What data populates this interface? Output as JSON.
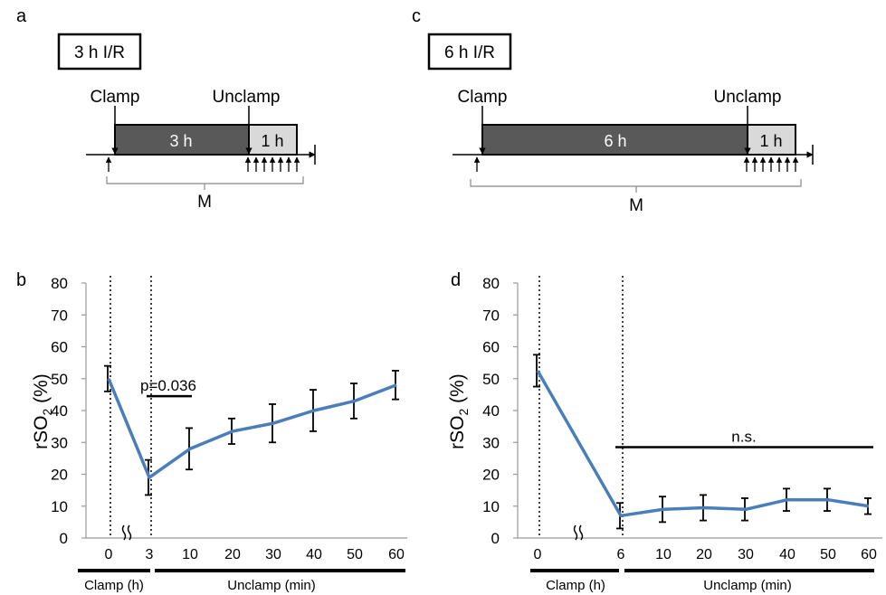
{
  "panels": {
    "a": {
      "letter": "a",
      "box_label": "3 h I/R",
      "clamp_label": "Clamp",
      "unclamp_label": "Unclamp",
      "dark_bar_label": "3 h",
      "light_bar_label": "1 h",
      "measure_label": "M",
      "measure_arrows_after_unclamp": 7
    },
    "c": {
      "letter": "c",
      "box_label": "6 h I/R",
      "clamp_label": "Clamp",
      "unclamp_label": "Unclamp",
      "dark_bar_label": "6 h",
      "light_bar_label": "1 h",
      "measure_label": "M",
      "measure_arrows_after_unclamp": 7
    }
  },
  "chart_data": [
    {
      "panel": "b",
      "type": "line",
      "letter": "b",
      "ylabel": "rSO2 (%)",
      "ylabel_main": "rSO",
      "ylabel_sub": "2",
      "ylabel_tail": " (%)",
      "ylim": [
        0,
        80
      ],
      "yticks": [
        0,
        10,
        20,
        30,
        40,
        50,
        60,
        70,
        80
      ],
      "x_tick_labels": [
        "0",
        "3",
        "10",
        "20",
        "30",
        "40",
        "50",
        "60"
      ],
      "clamp_segment_label": "Clamp (h)",
      "unclamp_segment_label": "Unclamp (min)",
      "series": [
        {
          "color": "#4a7ebb",
          "x": [
            "0",
            "3",
            "10",
            "20",
            "30",
            "40",
            "50",
            "60"
          ],
          "values": [
            50,
            19,
            28,
            33.5,
            36,
            40,
            43,
            48
          ],
          "error": [
            4,
            5.5,
            6.5,
            4,
            6,
            6.5,
            5.5,
            4.5
          ]
        }
      ],
      "annotation": {
        "text": "p=0.036",
        "y": 44.5
      },
      "vlines_at": [
        "0",
        "3"
      ]
    },
    {
      "panel": "d",
      "type": "line",
      "letter": "d",
      "ylabel": "rSO2 (%)",
      "ylabel_main": "rSO",
      "ylabel_sub": "2",
      "ylabel_tail": " (%)",
      "ylim": [
        0,
        80
      ],
      "yticks": [
        0,
        10,
        20,
        30,
        40,
        50,
        60,
        70,
        80
      ],
      "x_tick_labels": [
        "0",
        "6",
        "10",
        "20",
        "30",
        "40",
        "50",
        "60"
      ],
      "clamp_segment_label": "Clamp (h)",
      "unclamp_segment_label": "Unclamp (min)",
      "series": [
        {
          "color": "#4a7ebb",
          "x": [
            "0",
            "6",
            "10",
            "20",
            "30",
            "40",
            "50",
            "60"
          ],
          "values": [
            52.5,
            7,
            9,
            9.5,
            9,
            12,
            12,
            10
          ],
          "error": [
            5,
            4,
            4,
            4,
            3.5,
            3.5,
            3.5,
            2.5
          ]
        }
      ],
      "annotation": {
        "text": "n.s.",
        "y": 28.5
      },
      "vlines_at": [
        "0",
        "6"
      ]
    }
  ]
}
